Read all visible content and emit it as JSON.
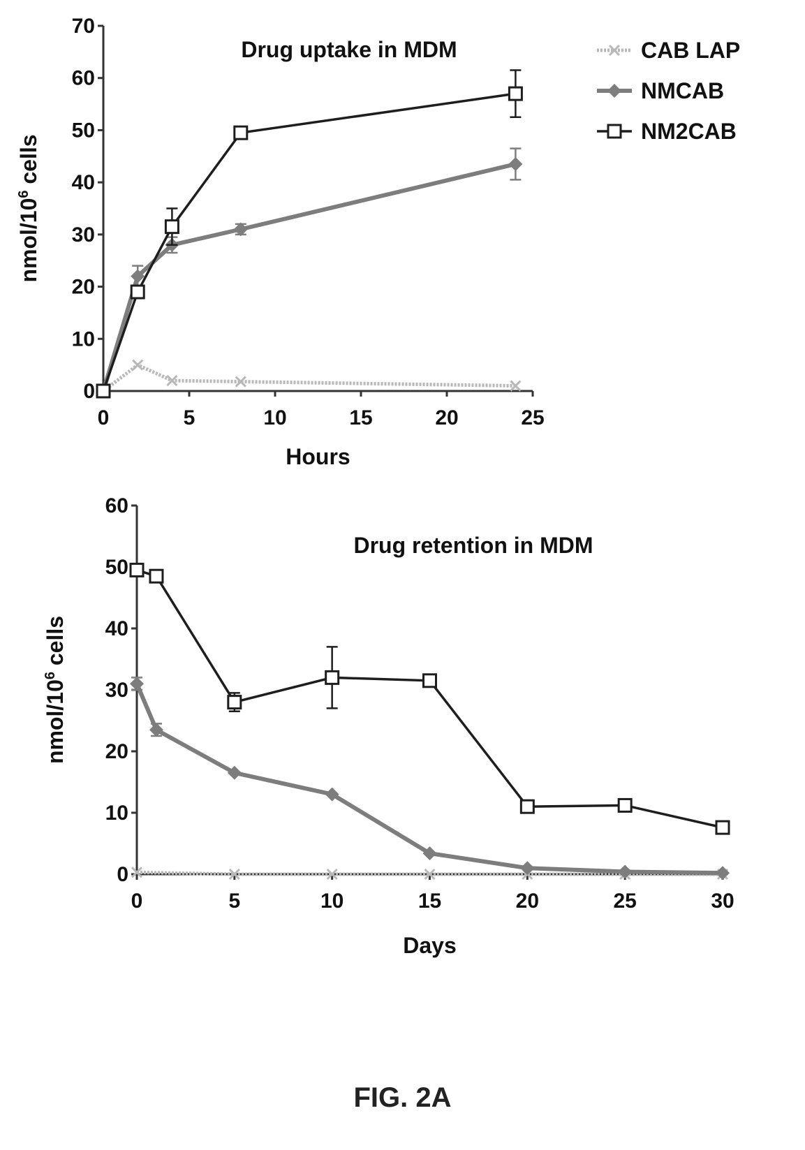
{
  "figure_label": "FIG. 2A",
  "colors": {
    "CAB LAP": "#b8b8b8",
    "NMCAB": "#7d7d7d",
    "NM2CAB": "#1e1e1e"
  },
  "chart_data": [
    {
      "type": "line",
      "title": "Drug uptake in MDM",
      "xlabel": "Hours",
      "ylabel": "nmol/10^6 cells",
      "ylabel_parts": {
        "pre": "nmol/10",
        "sup": "6",
        "post": " cells"
      },
      "xlim": [
        0,
        25
      ],
      "ylim": [
        0,
        70
      ],
      "xticks": [
        0,
        5,
        10,
        15,
        20,
        25
      ],
      "yticks": [
        0,
        10,
        20,
        30,
        40,
        50,
        60,
        70
      ],
      "legend": {
        "placement": "top-right",
        "entries": [
          "CAB LAP",
          "NMCAB",
          "NM2CAB"
        ]
      },
      "series": [
        {
          "name": "CAB LAP",
          "x": [
            0,
            2,
            4,
            8,
            24
          ],
          "y": [
            0,
            5,
            2,
            1.8,
            1
          ],
          "err": [
            0,
            0.8,
            0.5,
            0.5,
            0.5
          ]
        },
        {
          "name": "NMCAB",
          "x": [
            0,
            2,
            4,
            8,
            24
          ],
          "y": [
            0,
            22,
            28,
            31,
            43.5
          ],
          "err": [
            0,
            2,
            1.5,
            1,
            3
          ]
        },
        {
          "name": "NM2CAB",
          "x": [
            0,
            2,
            4,
            8,
            24
          ],
          "y": [
            0,
            19,
            31.5,
            49.5,
            57
          ],
          "err": [
            0,
            1,
            3.5,
            1,
            4.5
          ]
        }
      ]
    },
    {
      "type": "line",
      "title": "Drug retention in MDM",
      "xlabel": "Days",
      "ylabel": "nmol/10^6 cells",
      "ylabel_parts": {
        "pre": "nmol/10",
        "sup": "6",
        "post": " cells"
      },
      "xlim": [
        0,
        30
      ],
      "ylim": [
        0,
        60
      ],
      "xticks": [
        0,
        5,
        10,
        15,
        20,
        25,
        30
      ],
      "yticks": [
        0,
        10,
        20,
        30,
        40,
        50,
        60
      ],
      "series": [
        {
          "name": "CAB LAP",
          "x": [
            0,
            5,
            10,
            15,
            20,
            25,
            30
          ],
          "y": [
            0.3,
            0,
            0,
            0,
            0,
            0,
            0
          ],
          "err": [
            0,
            0,
            0,
            0,
            0,
            0,
            0
          ]
        },
        {
          "name": "NMCAB",
          "x": [
            0,
            1,
            5,
            10,
            15,
            20,
            25,
            30
          ],
          "y": [
            31,
            23.5,
            16.5,
            13,
            3.4,
            1,
            0.4,
            0.2
          ],
          "err": [
            1,
            1,
            0.8,
            0.8,
            0.8,
            0.5,
            0.5,
            0.5
          ]
        },
        {
          "name": "NM2CAB",
          "x": [
            0,
            1,
            5,
            10,
            15,
            20,
            25,
            30
          ],
          "y": [
            49.5,
            48.5,
            28,
            32,
            31.5,
            11,
            11.2,
            7.6
          ],
          "err": [
            1,
            1,
            1.5,
            5,
            1,
            1,
            0.8,
            0.8
          ]
        }
      ]
    }
  ]
}
